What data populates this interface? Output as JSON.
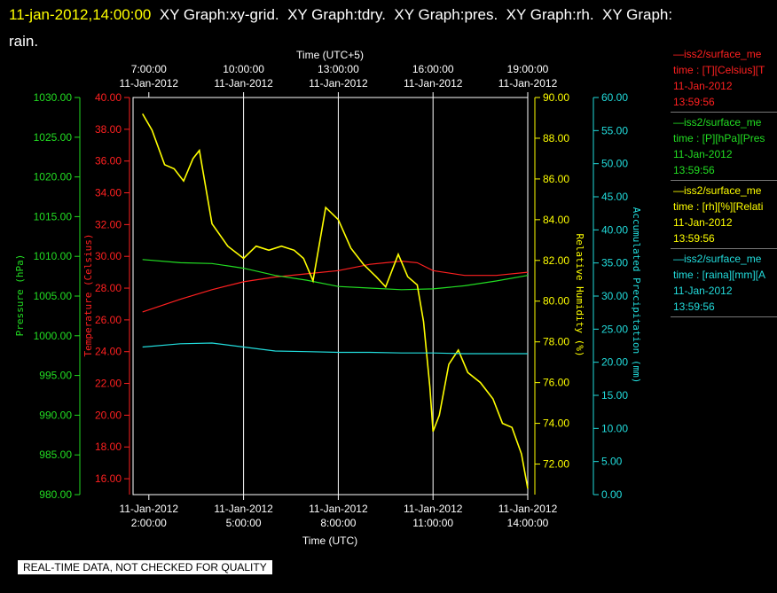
{
  "header": {
    "timestamp": "11-jan-2012,14:00:00",
    "rest": "  XY Graph:xy-grid.  XY Graph:tdry.  XY Graph:pres.  XY Graph:rh.  XY Graph:",
    "line2": "rain."
  },
  "footer": {
    "notice": "REAL-TIME DATA, NOT CHECKED FOR QUALITY"
  },
  "legend": [
    {
      "color": "#ff2020",
      "lines": [
        "—iss2/surface_me",
        "time : [T][Celsius][T",
        "11-Jan-2012",
        "13:59:56"
      ]
    },
    {
      "color": "#22dd22",
      "lines": [
        "—iss2/surface_me",
        "time : [P][hPa][Pres",
        "11-Jan-2012",
        "13:59:56"
      ]
    },
    {
      "color": "#ffff00",
      "lines": [
        "—iss2/surface_me",
        "time : [rh][%][Relati",
        "11-Jan-2012",
        "13:59:56"
      ]
    },
    {
      "color": "#22dddd",
      "lines": [
        "—iss2/surface_me",
        "time : [raina][mm][A",
        "11-Jan-2012",
        "13:59:56"
      ]
    }
  ],
  "chart_data": {
    "type": "line",
    "x_bottom": {
      "label": "Time (UTC)",
      "range_hours": [
        1.5,
        14.0
      ],
      "ticks": [
        {
          "hour": 2,
          "date": "11-Jan-2012",
          "time": "2:00:00"
        },
        {
          "hour": 5,
          "date": "11-Jan-2012",
          "time": "5:00:00"
        },
        {
          "hour": 8,
          "date": "11-Jan-2012",
          "time": "8:00:00"
        },
        {
          "hour": 11,
          "date": "11-Jan-2012",
          "time": "11:00:00"
        },
        {
          "hour": 14,
          "date": "11-Jan-2012",
          "time": "14:00:00"
        }
      ]
    },
    "x_top": {
      "label": "Time (UTC+5)",
      "ticks": [
        {
          "hour": 2,
          "date": "11-Jan-2012",
          "time": "7:00:00"
        },
        {
          "hour": 5,
          "date": "11-Jan-2012",
          "time": "10:00:00"
        },
        {
          "hour": 8,
          "date": "11-Jan-2012",
          "time": "13:00:00"
        },
        {
          "hour": 11,
          "date": "11-Jan-2012",
          "time": "16:00:00"
        },
        {
          "hour": 14,
          "date": "11-Jan-2012",
          "time": "19:00:00"
        }
      ]
    },
    "grid_hours": [
      5,
      8,
      11
    ],
    "axes": {
      "pressure": {
        "label": "Pressure (hPa)",
        "color": "#22dd22",
        "range": [
          980,
          1030
        ],
        "ticks": [
          "1030.00",
          "1025.00",
          "1020.00",
          "1015.00",
          "1010.00",
          "1005.00",
          "1000.00",
          "995.00",
          "990.00",
          "985.00",
          "980.00"
        ]
      },
      "temperature": {
        "label": "Temperature (Celsius)",
        "color": "#ff2020",
        "range": [
          15,
          40
        ],
        "ticks": [
          "40.00",
          "38.00",
          "36.00",
          "34.00",
          "32.00",
          "30.00",
          "28.00",
          "26.00",
          "24.00",
          "22.00",
          "20.00",
          "18.00",
          "16.00"
        ]
      },
      "rh": {
        "label": "Relative Humidity (%)",
        "color": "#ffff00",
        "range": [
          70.5,
          90
        ],
        "ticks": [
          "90.00",
          "88.00",
          "86.00",
          "84.00",
          "82.00",
          "80.00",
          "78.00",
          "76.00",
          "74.00",
          "72.00"
        ]
      },
      "rain": {
        "label": "Accumulated Precipitation (mm)",
        "color": "#22dddd",
        "range": [
          0,
          60
        ],
        "ticks": [
          "60.00",
          "55.00",
          "50.00",
          "45.00",
          "40.00",
          "35.00",
          "30.00",
          "25.00",
          "20.00",
          "15.00",
          "10.00",
          "5.00",
          "0.00"
        ]
      }
    },
    "series": [
      {
        "name": "iss2/surface_met time : [T][Celsius]",
        "axis": "temperature",
        "color": "#ff2020",
        "x": [
          1.8,
          3,
          4,
          5,
          6,
          7,
          8,
          9,
          10,
          10.5,
          11,
          12,
          13,
          14
        ],
        "y": [
          26.5,
          27.3,
          27.9,
          28.4,
          28.7,
          28.9,
          29.1,
          29.5,
          29.7,
          29.6,
          29.1,
          28.8,
          28.8,
          29.0
        ]
      },
      {
        "name": "iss2/surface_met time : [P][hPa]",
        "axis": "pressure",
        "color": "#22dd22",
        "x": [
          1.8,
          3,
          4,
          5,
          6,
          7,
          8,
          9,
          10,
          11,
          12,
          13,
          14
        ],
        "y": [
          1009.6,
          1009.2,
          1009.1,
          1008.5,
          1007.6,
          1007.0,
          1006.2,
          1006.0,
          1005.8,
          1005.9,
          1006.3,
          1006.9,
          1007.6
        ]
      },
      {
        "name": "iss2/surface_met time : [rh][%]",
        "axis": "rh",
        "color": "#ffff00",
        "x": [
          1.8,
          2.1,
          2.5,
          2.8,
          3.1,
          3.4,
          3.6,
          4.0,
          4.5,
          5.0,
          5.4,
          5.8,
          6.2,
          6.6,
          6.9,
          7.2,
          7.6,
          8.0,
          8.4,
          8.8,
          9.2,
          9.5,
          9.9,
          10.2,
          10.5,
          10.7,
          10.9,
          11.0,
          11.2,
          11.5,
          11.8,
          12.1,
          12.5,
          12.9,
          13.2,
          13.5,
          13.8,
          14.0
        ],
        "y": [
          89.2,
          88.4,
          86.7,
          86.5,
          85.9,
          87.0,
          87.4,
          83.8,
          82.7,
          82.1,
          82.7,
          82.5,
          82.7,
          82.5,
          82.1,
          81.0,
          84.6,
          84.0,
          82.6,
          81.8,
          81.2,
          80.7,
          82.3,
          81.2,
          80.8,
          79.0,
          75.8,
          73.6,
          74.4,
          76.9,
          77.6,
          76.5,
          76.0,
          75.2,
          74.0,
          73.8,
          72.5,
          70.8
        ]
      },
      {
        "name": "iss2/surface_met time : [raina][mm]",
        "axis": "rain",
        "color": "#22dddd",
        "x": [
          1.8,
          3,
          4,
          5,
          6,
          7,
          8,
          9,
          10,
          11,
          12,
          13,
          14
        ],
        "y": [
          22.3,
          22.8,
          22.9,
          22.3,
          21.7,
          21.6,
          21.5,
          21.5,
          21.4,
          21.4,
          21.3,
          21.3,
          21.3
        ]
      }
    ]
  }
}
